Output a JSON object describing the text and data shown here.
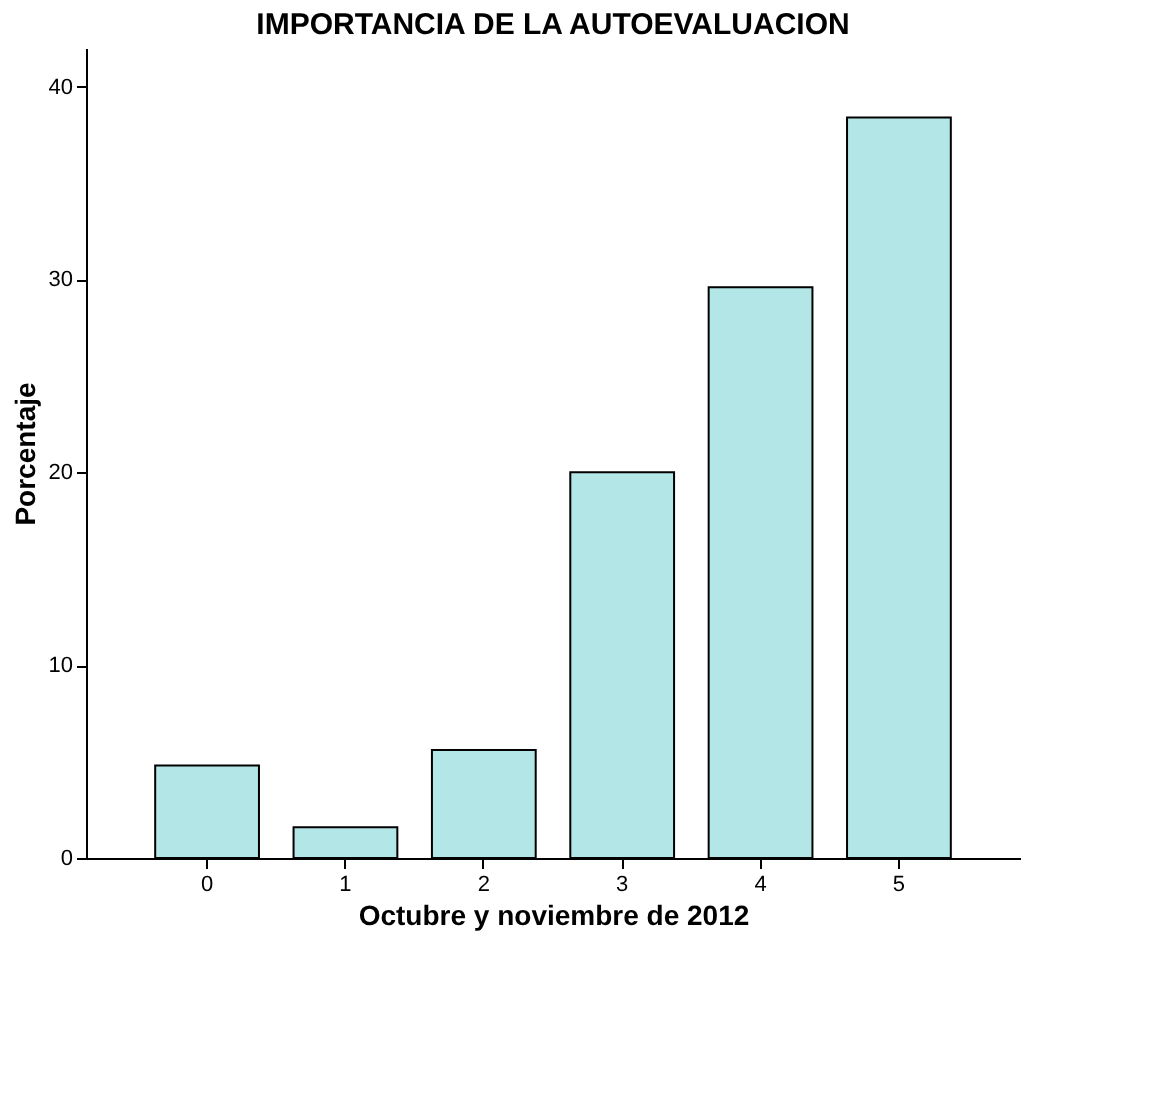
{
  "chart_data": {
    "type": "bar",
    "title": "IMPORTANCIA DE LA AUTOEVALUACION",
    "xlabel": "Octubre y noviembre de 2012",
    "ylabel": "Porcentaje",
    "categories": [
      "0",
      "1",
      "2",
      "3",
      "4",
      "5"
    ],
    "values": [
      4.8,
      1.6,
      5.6,
      20.0,
      29.6,
      38.4
    ],
    "color": "#b3e6e6",
    "ylim": [
      0,
      42
    ],
    "yticks": [
      0,
      10,
      20,
      30,
      40
    ],
    "grid": false
  }
}
